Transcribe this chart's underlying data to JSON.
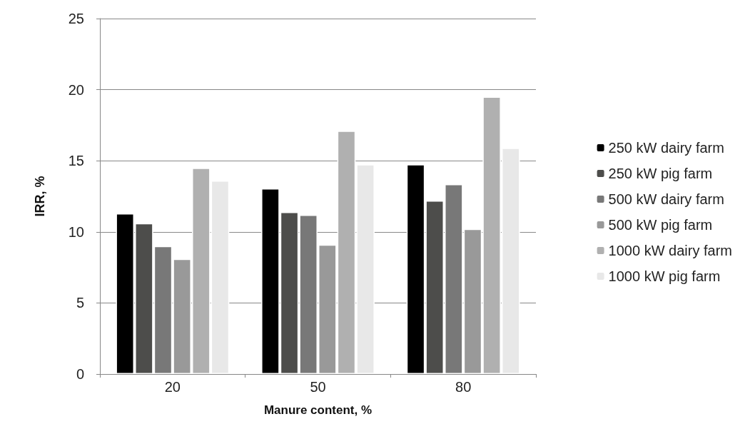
{
  "chart_data": {
    "type": "bar",
    "xlabel": "Manure content, %",
    "ylabel": "IRR, %",
    "categories": [
      "20",
      "50",
      "80"
    ],
    "series": [
      {
        "name": "250 kW dairy farm",
        "color": "#000000",
        "values": [
          11.3,
          13.05,
          14.75
        ]
      },
      {
        "name": "250 kW pig farm",
        "color": "#4d4d4b",
        "values": [
          10.6,
          11.4,
          12.2
        ]
      },
      {
        "name": "500 kW dairy farm",
        "color": "#787878",
        "values": [
          9.0,
          11.2,
          13.35
        ]
      },
      {
        "name": "500 kW pig farm",
        "color": "#999999",
        "values": [
          8.1,
          9.1,
          10.2
        ]
      },
      {
        "name": "1000 kW dairy farm",
        "color": "#b0b0b0",
        "values": [
          14.5,
          17.1,
          19.5
        ]
      },
      {
        "name": "1000 kW pig farm",
        "color": "#e8e8e8",
        "values": [
          13.6,
          14.75,
          15.9
        ]
      }
    ],
    "ylim": [
      0,
      25
    ],
    "yticks": [
      0,
      5,
      10,
      15,
      20,
      25
    ],
    "grid": "y",
    "legend": "right"
  }
}
